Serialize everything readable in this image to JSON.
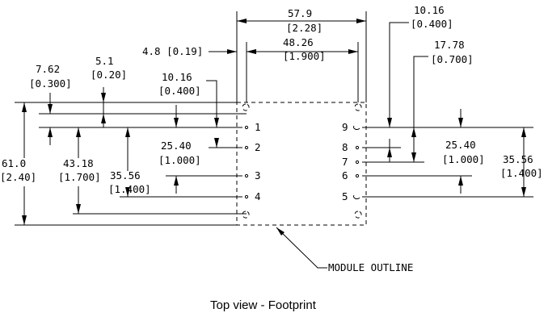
{
  "dimensions": {
    "d_57_9": "57.9",
    "d_2_28": "[2.28]",
    "d_48_26": "48.26",
    "d_1_900": "[1.900]",
    "d_4_8": "4.8 [0.19]",
    "d_7_62": "7.62",
    "d_0_300": "[0.300]",
    "d_5_1": "5.1",
    "d_0_20": "[0.20]",
    "d_10_16_left": "10.16",
    "d_0_400_left": "[0.400]",
    "d_10_16_right": "10.16",
    "d_0_400_right": "[0.400]",
    "d_17_78": "17.78",
    "d_0_700": "[0.700]",
    "d_25_40_left": "25.40",
    "d_1_000_left": "[1.000]",
    "d_25_40_right": "25.40",
    "d_1_000_right": "[1.000]",
    "d_35_56_left": "35.56",
    "d_1_400_left": "[1.400]",
    "d_35_56_right": "35.56",
    "d_1_400_right": "[1.400]",
    "d_61_0": "61.0",
    "d_2_40": "[2.40]",
    "d_43_18": "43.18",
    "d_1_700": "[1.700]"
  },
  "pins": {
    "p1": "1",
    "p2": "2",
    "p3": "3",
    "p4": "4",
    "p5": "5",
    "p6": "6",
    "p7": "7",
    "p8": "8",
    "p9": "9"
  },
  "labels": {
    "module_outline": "MODULE OUTLINE",
    "caption": "Top view - Footprint"
  }
}
